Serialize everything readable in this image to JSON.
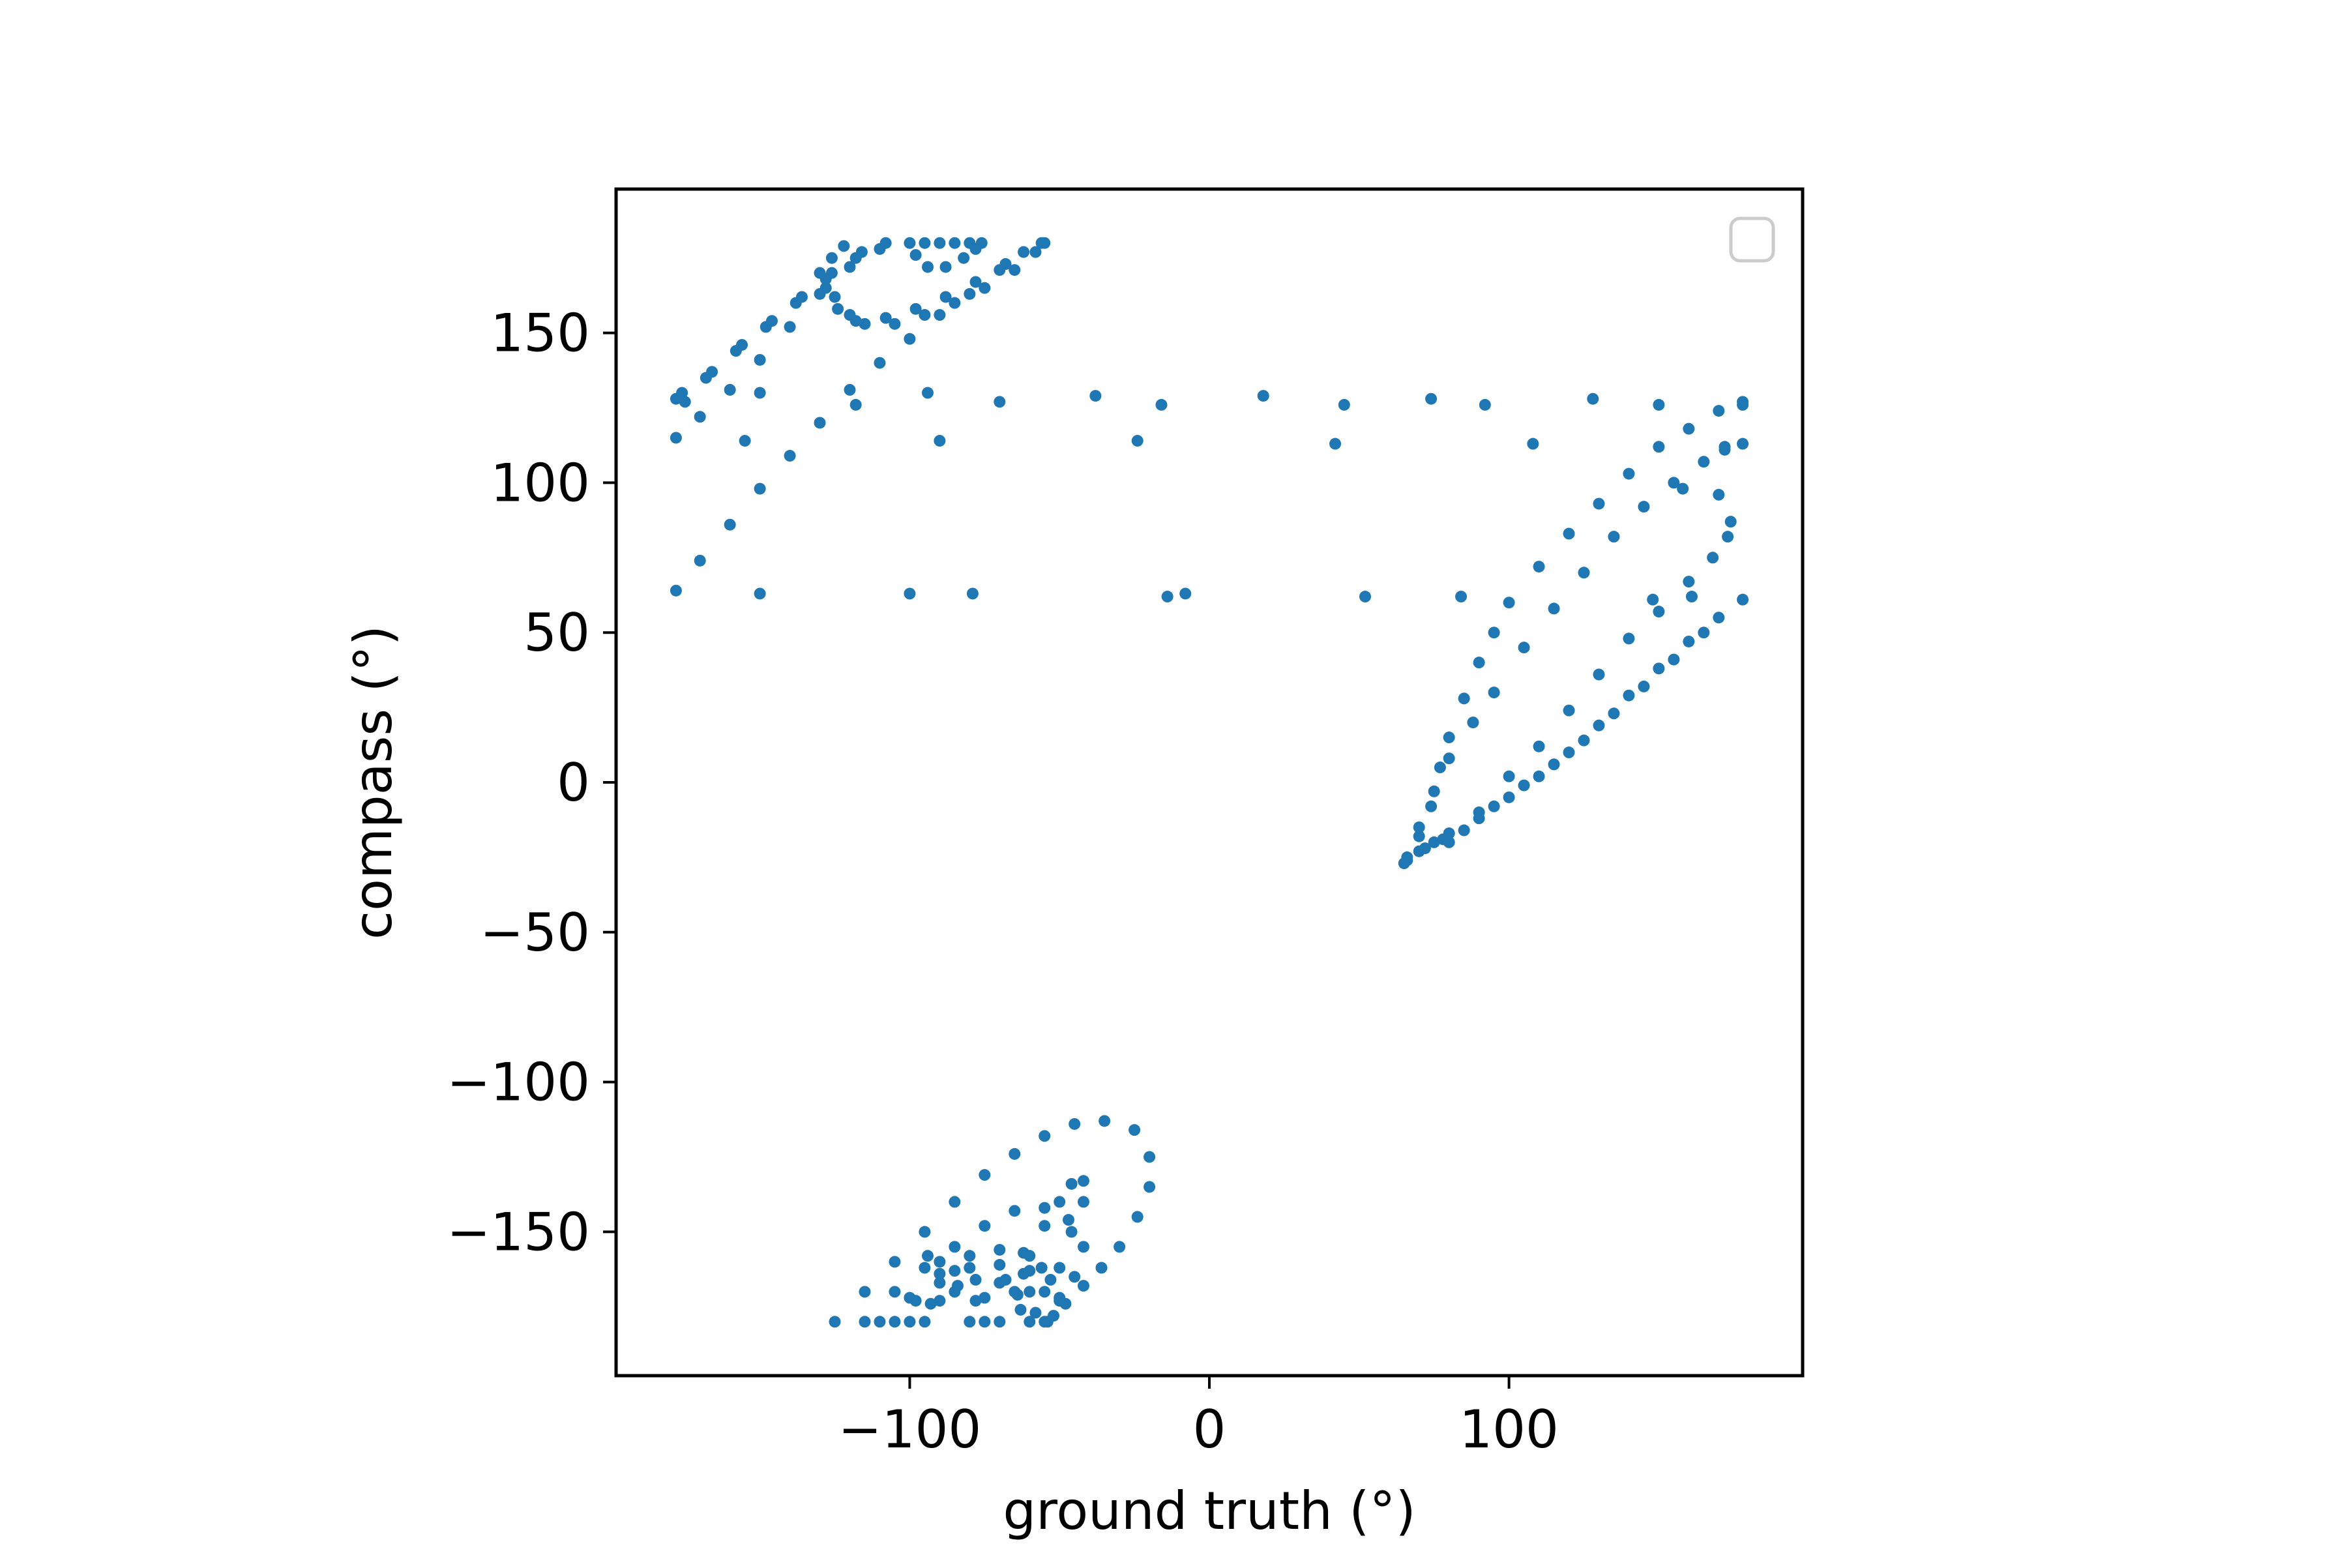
{
  "chart_data": {
    "type": "scatter",
    "title": "",
    "xlabel": "ground truth (°)",
    "ylabel": "compass (°)",
    "xlim": [
      -198,
      198
    ],
    "ylim": [
      -198,
      198
    ],
    "xticks": [
      -100,
      0,
      100
    ],
    "xtick_labels": [
      "−100",
      "0",
      "100"
    ],
    "yticks": [
      -150,
      -100,
      -50,
      0,
      50,
      100,
      150
    ],
    "ytick_labels": [
      "−150",
      "−100",
      "−50",
      "0",
      "50",
      "100",
      "150"
    ],
    "grid": false,
    "legend": {
      "placement": "top-right",
      "entries": []
    },
    "colors": {
      "series": "#1f77b4",
      "axes": "#000000",
      "legend_border": "#cccccc"
    },
    "series": [
      {
        "points": [
          [
            -178,
            115
          ],
          [
            -170,
            122
          ],
          [
            -160,
            131
          ],
          [
            -150,
            141
          ],
          [
            -140,
            152
          ],
          [
            -130,
            163
          ],
          [
            -120,
            172
          ],
          [
            -110,
            178
          ],
          [
            -178,
            128
          ],
          [
            -168,
            135
          ],
          [
            -158,
            144
          ],
          [
            -148,
            152
          ],
          [
            -138,
            160
          ],
          [
            -128,
            168
          ],
          [
            -118,
            175
          ],
          [
            -108,
            180
          ],
          [
            -176,
            130
          ],
          [
            -166,
            137
          ],
          [
            -156,
            146
          ],
          [
            -146,
            154
          ],
          [
            -136,
            162
          ],
          [
            -126,
            170
          ],
          [
            -116,
            177
          ],
          [
            -178,
            64
          ],
          [
            -170,
            74
          ],
          [
            -160,
            86
          ],
          [
            -150,
            98
          ],
          [
            -140,
            109
          ],
          [
            -130,
            120
          ],
          [
            -120,
            131
          ],
          [
            -110,
            140
          ],
          [
            -100,
            148
          ],
          [
            -90,
            156
          ],
          [
            -80,
            163
          ],
          [
            -70,
            171
          ],
          [
            -62,
            177
          ],
          [
            -56,
            180
          ],
          [
            -125,
            162
          ],
          [
            -120,
            156
          ],
          [
            -115,
            153
          ],
          [
            -105,
            153
          ],
          [
            -95,
            156
          ],
          [
            -85,
            160
          ],
          [
            -75,
            165
          ],
          [
            -65,
            171
          ],
          [
            -58,
            177
          ],
          [
            -55,
            180
          ],
          [
            -128,
            165
          ],
          [
            -124,
            158
          ],
          [
            -118,
            154
          ],
          [
            -108,
            155
          ],
          [
            -98,
            158
          ],
          [
            -88,
            162
          ],
          [
            -78,
            167
          ],
          [
            -68,
            173
          ],
          [
            -130,
            170
          ],
          [
            -126,
            175
          ],
          [
            -122,
            179
          ],
          [
            -100,
            180
          ],
          [
            -98,
            176
          ],
          [
            -94,
            172
          ],
          [
            -88,
            172
          ],
          [
            -82,
            175
          ],
          [
            -78,
            178
          ],
          [
            -95,
            180
          ],
          [
            -90,
            180
          ],
          [
            -85,
            180
          ],
          [
            -80,
            180
          ],
          [
            -76,
            180
          ],
          [
            65,
            -27
          ],
          [
            70,
            -23
          ],
          [
            75,
            -20
          ],
          [
            80,
            -17
          ],
          [
            90,
            -12
          ],
          [
            100,
            -5
          ],
          [
            110,
            2
          ],
          [
            120,
            10
          ],
          [
            130,
            19
          ],
          [
            140,
            29
          ],
          [
            150,
            38
          ],
          [
            160,
            47
          ],
          [
            170,
            55
          ],
          [
            178,
            61
          ],
          [
            66,
            -26
          ],
          [
            72,
            -22
          ],
          [
            78,
            -19
          ],
          [
            85,
            -16
          ],
          [
            95,
            -8
          ],
          [
            105,
            -1
          ],
          [
            115,
            6
          ],
          [
            125,
            14
          ],
          [
            135,
            23
          ],
          [
            145,
            32
          ],
          [
            155,
            41
          ],
          [
            165,
            50
          ],
          [
            66,
            -25
          ],
          [
            70,
            -18
          ],
          [
            74,
            -8
          ],
          [
            77,
            5
          ],
          [
            80,
            15
          ],
          [
            85,
            28
          ],
          [
            90,
            40
          ],
          [
            95,
            50
          ],
          [
            100,
            60
          ],
          [
            110,
            72
          ],
          [
            120,
            83
          ],
          [
            130,
            93
          ],
          [
            140,
            103
          ],
          [
            150,
            112
          ],
          [
            160,
            118
          ],
          [
            170,
            124
          ],
          [
            178,
            127
          ],
          [
            70,
            -15
          ],
          [
            75,
            -3
          ],
          [
            80,
            8
          ],
          [
            88,
            20
          ],
          [
            95,
            30
          ],
          [
            105,
            45
          ],
          [
            115,
            58
          ],
          [
            125,
            70
          ],
          [
            135,
            82
          ],
          [
            145,
            92
          ],
          [
            155,
            100
          ],
          [
            165,
            107
          ],
          [
            172,
            111
          ],
          [
            178,
            113
          ],
          [
            80,
            -20
          ],
          [
            90,
            -10
          ],
          [
            100,
            2
          ],
          [
            110,
            12
          ],
          [
            120,
            24
          ],
          [
            130,
            36
          ],
          [
            140,
            48
          ],
          [
            150,
            57
          ],
          [
            160,
            67
          ],
          [
            168,
            75
          ],
          [
            173,
            82
          ],
          [
            174,
            87
          ],
          [
            -125,
            -180
          ],
          [
            -115,
            -170
          ],
          [
            -105,
            -160
          ],
          [
            -95,
            -150
          ],
          [
            -85,
            -140
          ],
          [
            -75,
            -131
          ],
          [
            -65,
            -124
          ],
          [
            -55,
            -118
          ],
          [
            -45,
            -114
          ],
          [
            -35,
            -113
          ],
          [
            -25,
            -116
          ],
          [
            -20,
            -125
          ],
          [
            -20,
            -135
          ],
          [
            -24,
            -145
          ],
          [
            -30,
            -155
          ],
          [
            -36,
            -162
          ],
          [
            -42,
            -168
          ],
          [
            -48,
            -174
          ],
          [
            -54,
            -180
          ],
          [
            -115,
            -180
          ],
          [
            -105,
            -170
          ],
          [
            -95,
            -162
          ],
          [
            -85,
            -155
          ],
          [
            -75,
            -148
          ],
          [
            -65,
            -143
          ],
          [
            -55,
            -142
          ],
          [
            -47,
            -146
          ],
          [
            -42,
            -155
          ],
          [
            -45,
            -165
          ],
          [
            -50,
            -173
          ],
          [
            -55,
            -180
          ],
          [
            -110,
            -180
          ],
          [
            -100,
            -172
          ],
          [
            -90,
            -164
          ],
          [
            -80,
            -158
          ],
          [
            -70,
            -156
          ],
          [
            -62,
            -157
          ],
          [
            -56,
            -162
          ],
          [
            -55,
            -170
          ],
          [
            -58,
            -177
          ],
          [
            -60,
            -180
          ],
          [
            -105,
            -180
          ],
          [
            -98,
            -173
          ],
          [
            -90,
            -167
          ],
          [
            -80,
            -162
          ],
          [
            -70,
            -161
          ],
          [
            -62,
            -164
          ],
          [
            -60,
            -170
          ],
          [
            -63,
            -176
          ],
          [
            -95,
            -180
          ],
          [
            -90,
            -173
          ],
          [
            -84,
            -168
          ],
          [
            -78,
            -166
          ],
          [
            -70,
            -167
          ],
          [
            -64,
            -171
          ],
          [
            -80,
            -180
          ],
          [
            -75,
            -172
          ],
          [
            -68,
            -166
          ],
          [
            -60,
            -163
          ],
          [
            -53,
            -166
          ],
          [
            -50,
            -172
          ],
          [
            -52,
            -178
          ],
          [
            -70,
            -180
          ],
          [
            -65,
            -170
          ],
          [
            -60,
            -158
          ],
          [
            -55,
            -148
          ],
          [
            -50,
            -140
          ],
          [
            -46,
            -134
          ],
          [
            -42,
            -133
          ],
          [
            -42,
            -140
          ],
          [
            -46,
            -150
          ],
          [
            -50,
            -162
          ],
          [
            -100,
            -180
          ],
          [
            -93,
            -174
          ],
          [
            -85,
            -170
          ],
          [
            -78,
            -173
          ],
          [
            -75,
            -180
          ],
          [
            -94,
            -158
          ],
          [
            -90,
            -160
          ],
          [
            -85,
            -163
          ],
          [
            -175,
            127
          ],
          [
            -150,
            130
          ],
          [
            -118,
            126
          ],
          [
            -94,
            130
          ],
          [
            -70,
            127
          ],
          [
            -38,
            129
          ],
          [
            -16,
            126
          ],
          [
            18,
            129
          ],
          [
            45,
            126
          ],
          [
            74,
            128
          ],
          [
            92,
            126
          ],
          [
            128,
            128
          ],
          [
            150,
            126
          ],
          [
            178,
            126
          ],
          [
            -155,
            114
          ],
          [
            -90,
            114
          ],
          [
            -24,
            114
          ],
          [
            42,
            113
          ],
          [
            108,
            113
          ],
          [
            172,
            112
          ],
          [
            -150,
            63
          ],
          [
            -100,
            63
          ],
          [
            -79,
            63
          ],
          [
            -14,
            62
          ],
          [
            -8,
            63
          ],
          [
            52,
            62
          ],
          [
            84,
            62
          ],
          [
            148,
            61
          ],
          [
            161,
            62
          ],
          [
            158,
            98
          ],
          [
            170,
            96
          ]
        ]
      }
    ]
  }
}
